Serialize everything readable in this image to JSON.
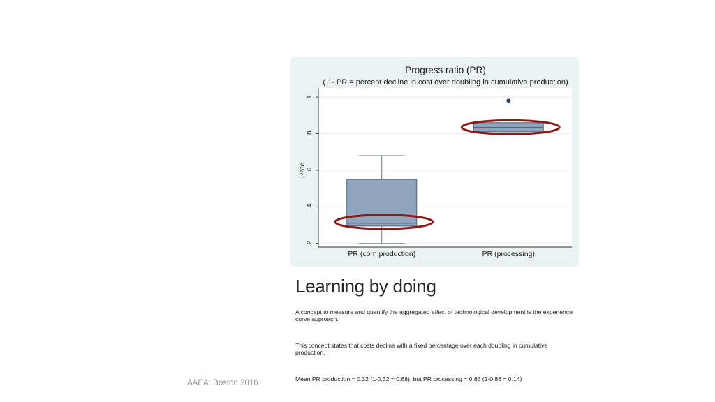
{
  "slide": {
    "heading": "Learning by doing",
    "paragraphs": [
      "A concept to measure and quantify the aggregated effect of technological development is the experience curve approach.",
      "This concept states that costs decline with a fixed percentage over each doubling in cumulative production.",
      "Mean PR production = 0.32 (1-0.32 = 0.68), but PR processing = 0.86 (1-0.86 = 0.14)"
    ],
    "footer": "AAEA: Boston 2016"
  },
  "chart_data": {
    "type": "box",
    "title": "Progress ratio (PR)",
    "subtitle": "( 1- PR = percent decline in cost over doubling in cumulative production)",
    "ylabel": "Rate",
    "ylim": [
      0.18,
      1.05
    ],
    "yticks": [
      0.2,
      0.4,
      0.6,
      0.8,
      1.0
    ],
    "ytick_labels": [
      ".2",
      ".4",
      ".6",
      ".8",
      "1"
    ],
    "grid": true,
    "categories": [
      "PR (corn production)",
      "PR (processing)"
    ],
    "boxes": [
      {
        "whisker_low": 0.2,
        "q1": 0.295,
        "median": 0.31,
        "q3": 0.55,
        "whisker_high": 0.68,
        "outliers": [],
        "highlight_ellipse": true
      },
      {
        "whisker_low": 0.81,
        "q1": 0.81,
        "median": 0.835,
        "q3": 0.86,
        "whisker_high": 0.86,
        "outliers": [
          0.98
        ],
        "highlight_ellipse": true
      }
    ],
    "colors": {
      "box_fill": "#8fa4bd",
      "box_stroke": "#4f5f70",
      "whisker": "#6b7b8c",
      "outlier": "#1f3b6b",
      "ellipse": "#8b1a1a",
      "plot_bg": "#ffffff",
      "panel_bg": "#eaf2f3",
      "grid": "#e6ecee"
    }
  }
}
